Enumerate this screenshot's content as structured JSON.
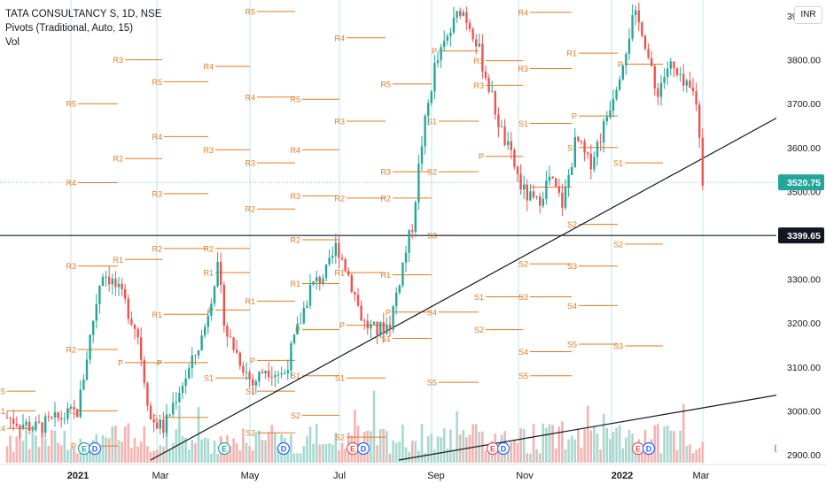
{
  "legend": {
    "symbol": "TATA CONSULTANCY S, 1D, NSE",
    "indicator": "Pivots (Traditional, Auto, 15)",
    "volume": "Vol"
  },
  "currency_badge": "INR",
  "colors": {
    "up": "#26a69a",
    "down": "#ef5350",
    "vol_up": "#a8d8cf",
    "vol_down": "#f4b3b1",
    "pivot": "#e07b24",
    "grid_v": "#bde4ef",
    "last_price_bg": "#26a69a",
    "level_bg": "#131722"
  },
  "chart_data": {
    "type": "candlestick",
    "title": "TATA CONSULTANCY S, 1D, NSE",
    "y_range": [
      2880,
      4040
    ],
    "y_ticks": [
      "3900.00",
      "3800.00",
      "3700.00",
      "3600.00",
      "3500.00",
      "3300.00",
      "3200.00",
      "3100.00",
      "3000.00",
      "2900.00"
    ],
    "x_ticks": [
      "2021",
      "Mar",
      "May",
      "Jul",
      "Sep",
      "Nov",
      "2022",
      "Mar"
    ],
    "last_price": {
      "value": 3520.75,
      "label": "3520.75"
    },
    "horizontal_level": {
      "value": 3399.65,
      "label": "3399.65"
    },
    "pivot_sets": [
      {
        "seg": 0,
        "levels": {
          "R4": 2960,
          "R5": 3045,
          "R1": 3000
        }
      },
      {
        "seg": 1,
        "levels": {
          "R5": 3700,
          "R4": 3520,
          "R3": 3330,
          "R2": 3140,
          "R1": 3000,
          "P": 2920
        }
      },
      {
        "seg": 2,
        "levels": {
          "R3": 3800,
          "R2": 3575,
          "R1": 3345,
          "P": 3110
        }
      },
      {
        "seg": 3,
        "levels": {
          "R5": 3750,
          "R4": 3625,
          "R3": 3495,
          "R2": 3370,
          "R1": 3220,
          "P": 3110,
          "S1": 2985
        }
      },
      {
        "seg": 4,
        "levels": {
          "R4": 3785,
          "R3": 3595,
          "R2": 3370,
          "R1": 3315,
          "P": 3230,
          "S1": 3075
        }
      },
      {
        "seg": 5,
        "levels": {
          "R5": 3910,
          "R4": 3715,
          "R3": 3565,
          "R2": 3460,
          "R1": 3250,
          "P": 3115,
          "S1": 3045,
          "S2": 2950
        }
      },
      {
        "seg": 6,
        "levels": {
          "R5": 3710,
          "R4": 3595,
          "R3": 3490,
          "R2": 3390,
          "R1": 3290,
          "P": 3185,
          "S1": 3080,
          "S2": 2990
        }
      },
      {
        "seg": 7,
        "levels": {
          "R4": 3850,
          "R3": 3660,
          "R2": 3485,
          "R1": 3315,
          "P": 3195,
          "S1": 3075,
          "S2": 2940
        }
      },
      {
        "seg": 8,
        "levels": {
          "R4": 4010,
          "R5": 3745,
          "R3": 3545,
          "R2": 3485,
          "R1": 3310,
          "P": 3225,
          "S1": 3165
        }
      },
      {
        "seg": 9,
        "levels": {
          "R1": 4020,
          "P": 3820,
          "S1": 3660,
          "S2": 3545,
          "S3": 3400,
          "S4": 3225,
          "S5": 3065
        }
      },
      {
        "seg": 10,
        "levels": {
          "R1": 3798,
          "R3": 3742,
          "P": 3580,
          "S1": 3260,
          "S2": 3185
        }
      },
      {
        "seg": 11,
        "levels": {
          "R1": 4010,
          "R2": 3985,
          "R3": 3780,
          "R4": 3908,
          "P": 3510,
          "S1": 3655,
          "S2": 3335,
          "S3": 3260,
          "S4": 3135,
          "S5": 3080
        }
      },
      {
        "seg": 12,
        "levels": {
          "R2": 4000,
          "R1": 3815,
          "P": 3672,
          "S1": 3600,
          "S2": 3425,
          "S3": 3330,
          "S4": 3240,
          "S5": 3152
        }
      },
      {
        "seg": 13,
        "levels": {
          "R1": 3955,
          "P": 3790,
          "S1": 3565,
          "S2": 3380,
          "S3": 3148
        }
      }
    ],
    "volume": {
      "description": "daily volume bars at chart bottom"
    },
    "events": [
      "E",
      "D",
      "E",
      "D",
      "E",
      "D",
      "E",
      "D",
      "E",
      "D",
      "E",
      "D",
      "E"
    ]
  }
}
